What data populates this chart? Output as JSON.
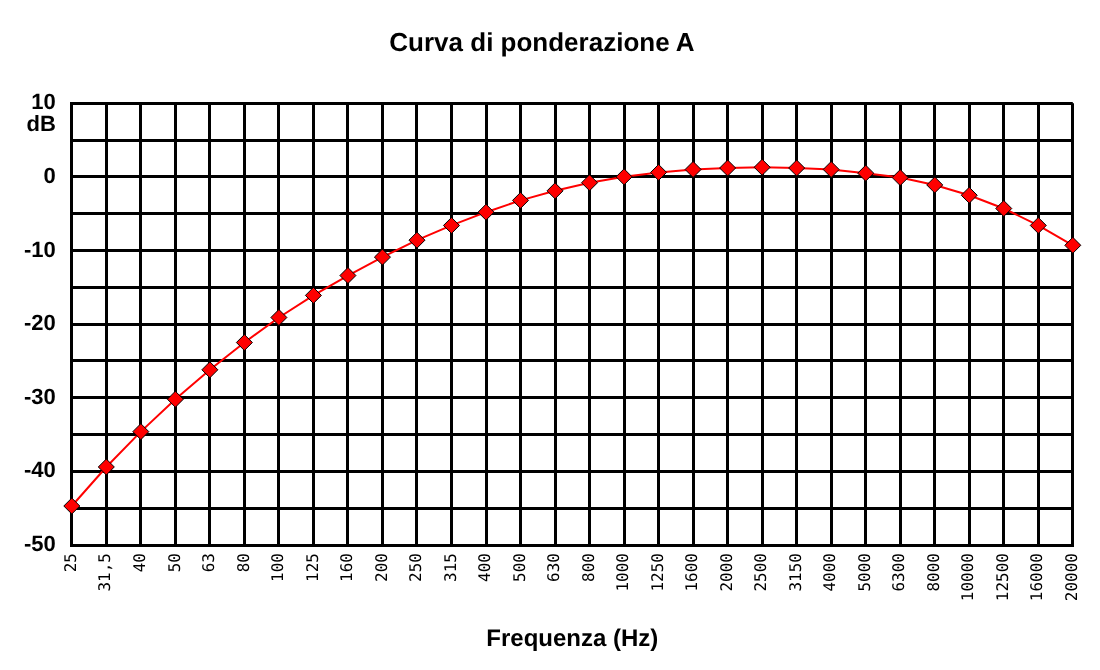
{
  "chart_data": {
    "type": "line",
    "title": "Curva di ponderazione A",
    "xlabel": "Frequenza (Hz)",
    "ylabel": "dB",
    "categories": [
      "25",
      "31,5",
      "40",
      "50",
      "63",
      "80",
      "100",
      "125",
      "160",
      "200",
      "250",
      "315",
      "400",
      "500",
      "630",
      "800",
      "1000",
      "1250",
      "1600",
      "2000",
      "2500",
      "3150",
      "4000",
      "5000",
      "6300",
      "8000",
      "10000",
      "12500",
      "16000",
      "20000"
    ],
    "series": [
      {
        "color": "#ff0000",
        "values": [
          -44.7,
          -39.4,
          -34.6,
          -30.2,
          -26.2,
          -22.5,
          -19.1,
          -16.1,
          -13.4,
          -10.9,
          -8.6,
          -6.6,
          -4.8,
          -3.2,
          -1.9,
          -0.8,
          0,
          0.6,
          1.0,
          1.2,
          1.3,
          1.2,
          1.0,
          0.5,
          -0.1,
          -1.1,
          -2.5,
          -4.3,
          -6.6,
          -9.3
        ]
      }
    ],
    "ylim": [
      -50,
      10
    ],
    "yticks": [
      -50,
      {
        "value": -45,
        "label": null
      },
      -40,
      {
        "value": -35,
        "label": null
      },
      -30,
      {
        "value": -25,
        "label": null
      },
      -20,
      {
        "value": -15,
        "label": null
      },
      -10,
      {
        "value": -5,
        "label": null
      },
      0,
      {
        "value": 5,
        "label": null
      },
      10
    ],
    "grid": true,
    "legend": false,
    "marker": "diamond",
    "line_style": "solid"
  }
}
